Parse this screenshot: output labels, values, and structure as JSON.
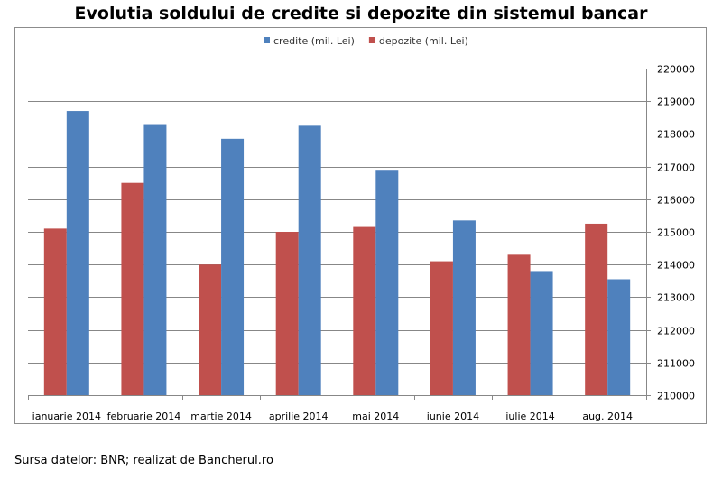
{
  "chart_data": {
    "type": "bar",
    "title": "Evolutia soldului de credite si depozite din sistemul bancar",
    "categories": [
      "ianuarie 2014",
      "februarie 2014",
      "martie 2014",
      "aprilie 2014",
      "mai 2014",
      "iunie 2014",
      "iulie 2014",
      "aug. 2014"
    ],
    "series": [
      {
        "name": "depozite (mil. Lei)",
        "color": "#c0504d",
        "values": [
          215100,
          216500,
          214000,
          215000,
          215150,
          214100,
          214300,
          215250
        ]
      },
      {
        "name": "credite (mil. Lei)",
        "color": "#4f81bd",
        "values": [
          218700,
          218300,
          217850,
          218250,
          216900,
          215350,
          213800,
          213550
        ]
      }
    ],
    "legend_order": [
      "credite (mil. Lei)",
      "depozite (mil. Lei)"
    ],
    "ylim": [
      210000,
      220000
    ],
    "yticks": [
      "220000",
      "219000",
      "218000",
      "217000",
      "216000",
      "215000",
      "214000",
      "213000",
      "212000",
      "211000",
      "210000"
    ],
    "y_axis_side": "right",
    "grid": true,
    "legend_position": "top-center",
    "xlabel": "",
    "ylabel": ""
  },
  "source_text": "Sursa datelor: BNR; realizat de Bancherul.ro"
}
